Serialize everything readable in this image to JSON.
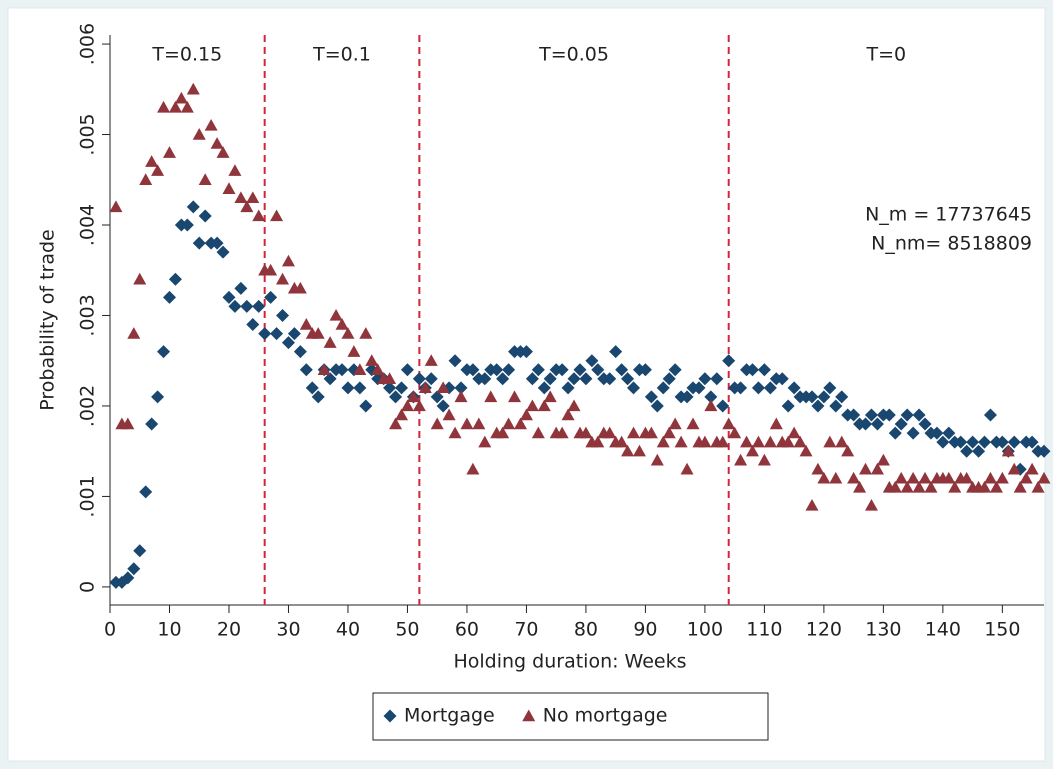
{
  "chart_data": {
    "type": "scatter",
    "x_label": "Holding duration: Weeks",
    "y_label": "Probability of trade",
    "xlim": [
      0,
      157
    ],
    "ylim": [
      -0.0002,
      0.0061
    ],
    "xticks": [
      0,
      10,
      20,
      30,
      40,
      50,
      60,
      70,
      80,
      90,
      100,
      110,
      120,
      130,
      140,
      150
    ],
    "yticks": [
      0,
      {
        "value": 0.001,
        "label": ".001"
      },
      {
        "value": 0.002,
        "label": ".002"
      },
      {
        "value": 0.003,
        "label": ".003"
      },
      {
        "value": 0.004,
        "label": ".004"
      },
      {
        "value": 0.005,
        "label": ".005"
      },
      {
        "value": 0.006,
        "label": ".006"
      }
    ],
    "grid": false,
    "vlines": [
      26,
      52,
      104
    ],
    "vline_color": "#d0263a",
    "regions": [
      "T=0.15",
      "T=0.1",
      "T=0.05",
      "T=0"
    ],
    "annotations": [
      "N_m = 17737645",
      "N_nm= 8518809"
    ],
    "legend": "bottom",
    "x": [
      1,
      2,
      3,
      4,
      5,
      6,
      7,
      8,
      9,
      10,
      11,
      12,
      13,
      14,
      15,
      16,
      17,
      18,
      19,
      20,
      21,
      22,
      23,
      24,
      25,
      26,
      27,
      28,
      29,
      30,
      31,
      32,
      33,
      34,
      35,
      36,
      37,
      38,
      39,
      40,
      41,
      42,
      43,
      44,
      45,
      46,
      47,
      48,
      49,
      50,
      51,
      52,
      53,
      54,
      55,
      56,
      57,
      58,
      59,
      60,
      61,
      62,
      63,
      64,
      65,
      66,
      67,
      68,
      69,
      70,
      71,
      72,
      73,
      74,
      75,
      76,
      77,
      78,
      79,
      80,
      81,
      82,
      83,
      84,
      85,
      86,
      87,
      88,
      89,
      90,
      91,
      92,
      93,
      94,
      95,
      96,
      97,
      98,
      99,
      100,
      101,
      102,
      103,
      104,
      105,
      106,
      107,
      108,
      109,
      110,
      111,
      112,
      113,
      114,
      115,
      116,
      117,
      118,
      119,
      120,
      121,
      122,
      123,
      124,
      125,
      126,
      127,
      128,
      129,
      130,
      131,
      132,
      133,
      134,
      135,
      136,
      137,
      138,
      139,
      140,
      141,
      142,
      143,
      144,
      145,
      146,
      147,
      148,
      149,
      150,
      151,
      152,
      153,
      154,
      155,
      156,
      157
    ],
    "series": [
      {
        "name": "Mortgage",
        "color": "#1a476f",
        "marker": "diamond",
        "values": [
          5e-05,
          5e-05,
          0.0001,
          0.0002,
          0.0004,
          0.00105,
          0.0018,
          0.0021,
          0.0026,
          0.0032,
          0.0034,
          0.004,
          0.004,
          0.0042,
          0.0038,
          0.0041,
          0.0038,
          0.0038,
          0.0037,
          0.0032,
          0.0031,
          0.0033,
          0.0031,
          0.0029,
          0.0031,
          0.0028,
          0.0032,
          0.0028,
          0.003,
          0.0027,
          0.0028,
          0.0026,
          0.0024,
          0.0022,
          0.0021,
          0.0024,
          0.0023,
          0.0024,
          0.0024,
          0.0022,
          0.0024,
          0.0022,
          0.002,
          0.0024,
          0.0023,
          0.0023,
          0.0022,
          0.0021,
          0.0022,
          0.0024,
          0.0021,
          0.0023,
          0.0022,
          0.0023,
          0.0021,
          0.002,
          0.0022,
          0.0025,
          0.0022,
          0.0024,
          0.0024,
          0.0023,
          0.0023,
          0.0024,
          0.0024,
          0.0023,
          0.0024,
          0.0026,
          0.0026,
          0.0026,
          0.0023,
          0.0024,
          0.0022,
          0.0023,
          0.0024,
          0.0024,
          0.0022,
          0.0023,
          0.0024,
          0.0023,
          0.0025,
          0.0024,
          0.0023,
          0.0023,
          0.0026,
          0.0024,
          0.0023,
          0.0022,
          0.0024,
          0.0024,
          0.0021,
          0.002,
          0.0022,
          0.0023,
          0.0024,
          0.0021,
          0.0021,
          0.0022,
          0.0022,
          0.0023,
          0.0021,
          0.0023,
          0.002,
          0.0025,
          0.0022,
          0.0022,
          0.0024,
          0.0024,
          0.0022,
          0.0024,
          0.0022,
          0.0023,
          0.0023,
          0.002,
          0.0022,
          0.0021,
          0.0021,
          0.0021,
          0.002,
          0.0021,
          0.0022,
          0.002,
          0.0021,
          0.0019,
          0.0019,
          0.0018,
          0.0018,
          0.0019,
          0.0018,
          0.0019,
          0.0019,
          0.0017,
          0.0018,
          0.0019,
          0.0017,
          0.0019,
          0.0018,
          0.0017,
          0.0017,
          0.0016,
          0.0017,
          0.0016,
          0.0016,
          0.0015,
          0.0016,
          0.0015,
          0.0016,
          0.0019,
          0.0016,
          0.0016,
          0.0015,
          0.0016,
          0.0013,
          0.0016,
          0.0016,
          0.0015,
          0.0015
        ]
      },
      {
        "name": "No mortgage",
        "color": "#90353b",
        "marker": "triangle",
        "values": [
          0.0042,
          0.0018,
          0.0018,
          0.0028,
          0.0034,
          0.0045,
          0.0047,
          0.0046,
          0.0053,
          0.0048,
          0.0053,
          0.0054,
          0.0053,
          0.0055,
          0.005,
          0.0045,
          0.0051,
          0.0049,
          0.0048,
          0.0044,
          0.0046,
          0.0043,
          0.0042,
          0.0043,
          0.0041,
          0.0035,
          0.0035,
          0.0041,
          0.0034,
          0.0036,
          0.0033,
          0.0033,
          0.0029,
          0.0028,
          0.0028,
          0.0024,
          0.0027,
          0.003,
          0.0029,
          0.0028,
          0.0026,
          0.0024,
          0.0028,
          0.0025,
          0.0024,
          0.0023,
          0.0023,
          0.0018,
          0.0019,
          0.002,
          0.0021,
          0.002,
          0.0022,
          0.0025,
          0.0018,
          0.0022,
          0.0019,
          0.0017,
          0.0021,
          0.0018,
          0.0013,
          0.0018,
          0.0016,
          0.0021,
          0.0017,
          0.0017,
          0.0018,
          0.0021,
          0.0018,
          0.0019,
          0.002,
          0.0017,
          0.002,
          0.0021,
          0.0017,
          0.0017,
          0.0019,
          0.002,
          0.0017,
          0.0017,
          0.0016,
          0.0016,
          0.0017,
          0.0017,
          0.0016,
          0.0016,
          0.0015,
          0.0017,
          0.0015,
          0.0017,
          0.0017,
          0.0014,
          0.0016,
          0.0017,
          0.0018,
          0.0016,
          0.0013,
          0.0018,
          0.0016,
          0.0016,
          0.002,
          0.0016,
          0.0016,
          0.0018,
          0.0017,
          0.0014,
          0.0016,
          0.0015,
          0.0016,
          0.0014,
          0.0016,
          0.0018,
          0.0016,
          0.0016,
          0.0017,
          0.0016,
          0.0015,
          0.0009,
          0.0013,
          0.0012,
          0.0016,
          0.0012,
          0.0016,
          0.0015,
          0.0012,
          0.0011,
          0.0013,
          0.0009,
          0.0013,
          0.0014,
          0.0011,
          0.0011,
          0.0012,
          0.0011,
          0.0012,
          0.0011,
          0.0012,
          0.0011,
          0.0012,
          0.0012,
          0.0012,
          0.0011,
          0.0012,
          0.0012,
          0.0011,
          0.0011,
          0.0011,
          0.0012,
          0.0011,
          0.0012,
          0.0015,
          0.0013,
          0.0011,
          0.0012,
          0.0013,
          0.0011,
          0.0012
        ]
      }
    ]
  }
}
